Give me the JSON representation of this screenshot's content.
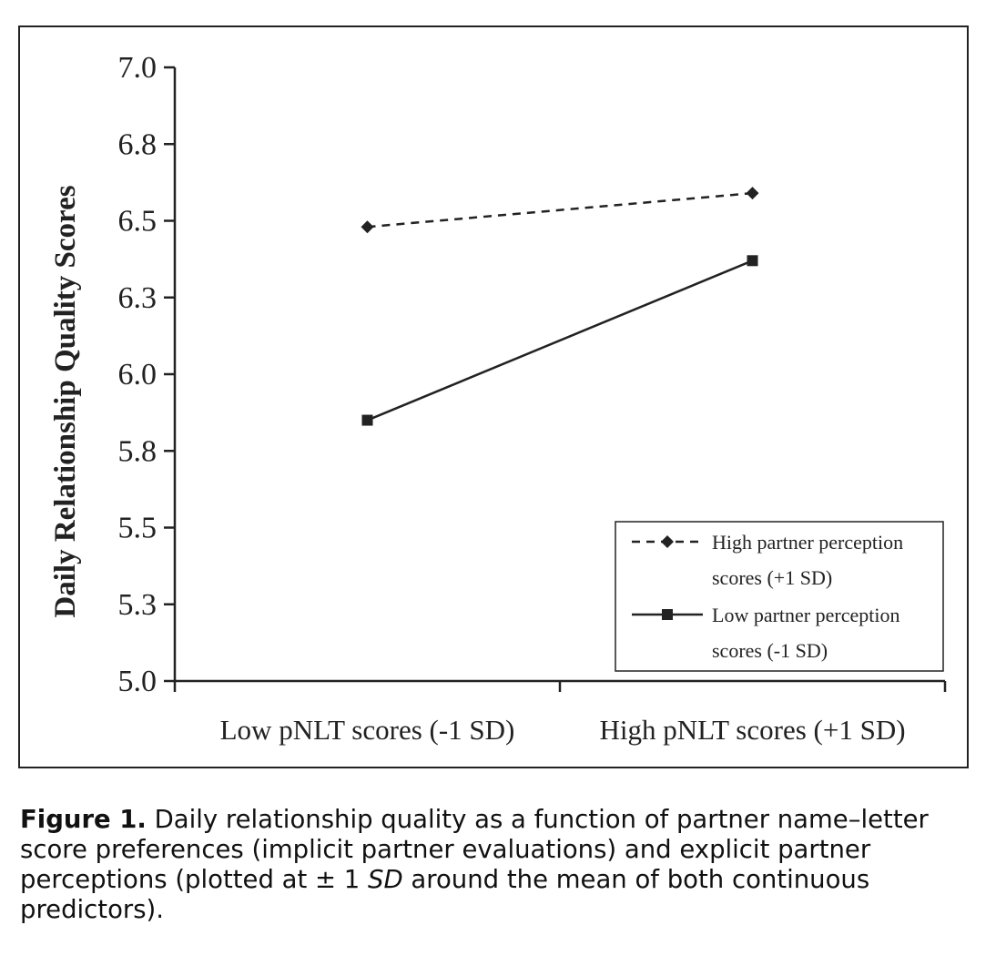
{
  "chart_data": {
    "type": "line",
    "ylabel": "Daily Relationship Quality Scores",
    "categories": [
      "Low pNLT scores (-1 SD)",
      "High pNLT scores (+1 SD)"
    ],
    "y_ticks": [
      "5.0",
      "5.3",
      "5.5",
      "5.8",
      "6.0",
      "6.3",
      "6.5",
      "6.8",
      "7.0"
    ],
    "ylim": [
      5.0,
      7.0
    ],
    "grid": false,
    "legend_position": "bottom-right",
    "series": [
      {
        "name": "High partner perception scores (+1 SD)",
        "legend_lines": [
          "High partner perception",
          "scores (+1 SD)"
        ],
        "values": [
          6.48,
          6.59
        ],
        "line_style": "dashed",
        "marker": "diamond",
        "color": "#222222"
      },
      {
        "name": "Low partner perception scores (-1 SD)",
        "legend_lines": [
          "Low partner perception",
          "scores (-1 SD)"
        ],
        "values": [
          5.85,
          6.37
        ],
        "line_style": "solid",
        "marker": "square",
        "color": "#222222"
      }
    ]
  },
  "caption": {
    "label": "Figure 1.",
    "part1": " Daily relationship quality as a function of partner name–letter score preferences (implicit partner evaluations) and explicit partner perceptions (plotted at ± 1 ",
    "sd": "SD",
    "part2": " around the mean of both continuous predictors)."
  }
}
